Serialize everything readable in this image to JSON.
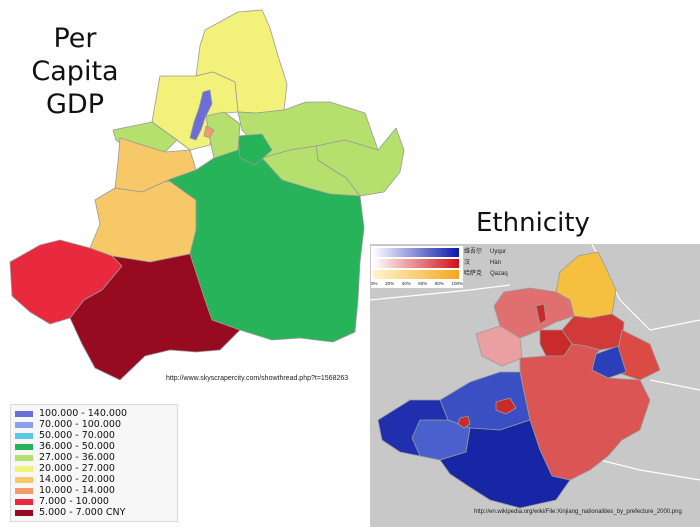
{
  "gdp_title": [
    "Per",
    "Capita",
    "GDP"
  ],
  "ethnicity_title": "Ethnicity",
  "gdp_credit": "http://www.skyscrapercity.com/showthread.php?t=1568263",
  "ethnicity_credit": "http://en.wikipedia.org/wiki/File:Xinjiang_nationalities_by_prefecture_2000.png",
  "gdp_legend": [
    {
      "label": "100.000 - 140.000",
      "color": "#6d6dd8"
    },
    {
      "label": "70.000 - 100.000",
      "color": "#8ea0ec"
    },
    {
      "label": "50.000 - 70.000",
      "color": "#5ac8e8"
    },
    {
      "label": "36.000 - 50.000",
      "color": "#26b35a"
    },
    {
      "label": "27.000 - 36.000",
      "color": "#b6e06e"
    },
    {
      "label": "20.000 - 27.000",
      "color": "#f2f27a"
    },
    {
      "label": "14.000 - 20.000",
      "color": "#f6c868"
    },
    {
      "label": "10.000 - 14.000",
      "color": "#f4996a"
    },
    {
      "label": "7.000 - 10.000",
      "color": "#e8293e"
    },
    {
      "label": "5.000 - 7.000 CNY",
      "color": "#960b1f"
    }
  ],
  "ethnicity_legend": {
    "rows": [
      {
        "cn": "维吾尔",
        "name": "Uyqur",
        "color": "#0a1aa8"
      },
      {
        "cn": "汉",
        "name": "Hàn",
        "color": "#d0101a"
      },
      {
        "cn": "哈萨克",
        "name": "Qazaq",
        "color": "#f5a81a"
      }
    ],
    "ticks": [
      "0%",
      "20%",
      "40%",
      "60%",
      "80%",
      "100%"
    ]
  }
}
